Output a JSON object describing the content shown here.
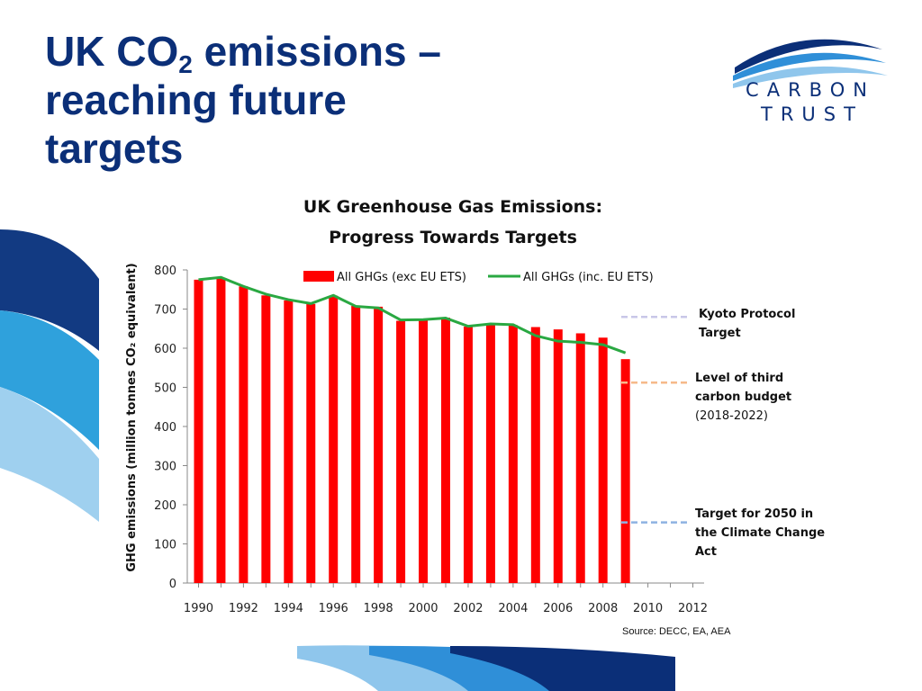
{
  "slide": {
    "title_line1_pre": "UK CO",
    "title_sub": "2",
    "title_line1_post": " emissions –",
    "title_line2": "reaching future",
    "title_line3": "targets"
  },
  "logo": {
    "line1": "CARBON",
    "line2": "TRUST",
    "colors": [
      "#0b2f78",
      "#2f8fd8",
      "#8fc6ec"
    ]
  },
  "chart_data": {
    "type": "bar",
    "title_line1": "UK Greenhouse Gas Emissions:",
    "title_line2": "Progress Towards Targets",
    "ylabel": "GHG emissions (million tonnes CO₂ equivalent)",
    "xlabel": "",
    "ylim": [
      0,
      800
    ],
    "yticks": [
      0,
      100,
      200,
      300,
      400,
      500,
      600,
      700,
      800
    ],
    "xlim": [
      1989.5,
      2012.5
    ],
    "xticks": [
      1990,
      1992,
      1994,
      1996,
      1998,
      2000,
      2002,
      2004,
      2006,
      2008,
      2010,
      2012
    ],
    "grid": false,
    "legend_position": "top",
    "x": [
      1990,
      1991,
      1992,
      1993,
      1994,
      1995,
      1996,
      1997,
      1998,
      1999,
      2000,
      2001,
      2002,
      2003,
      2004,
      2005,
      2006,
      2007,
      2008,
      2009
    ],
    "series": [
      {
        "name": "All GHGs (exc EU ETS)",
        "type": "bar",
        "color": "#ff0000",
        "values": [
          775,
          779,
          758,
          735,
          722,
          713,
          734,
          708,
          706,
          670,
          673,
          678,
          655,
          660,
          659,
          654,
          648,
          638,
          627,
          572
        ]
      },
      {
        "name": "All GHGs (inc. EU ETS)",
        "type": "line",
        "color": "#2aa842",
        "values": [
          775,
          781,
          758,
          738,
          724,
          714,
          735,
          707,
          703,
          672,
          673,
          677,
          656,
          662,
          660,
          632,
          618,
          615,
          609,
          588
        ]
      }
    ],
    "targets": [
      {
        "label_lines": [
          "Kyoto Protocol",
          "Target"
        ],
        "value": 680,
        "color": "#c9c7e8"
      },
      {
        "label_lines": [
          "Level of third",
          "carbon budget",
          "(2018-2022)"
        ],
        "value": 512,
        "color": "#f6b98a"
      },
      {
        "label_lines": [
          "Target for 2050 in",
          "the Climate Change",
          "Act"
        ],
        "value": 155,
        "color": "#8eb2e2"
      }
    ],
    "source": "Source: DECC, EA, AEA"
  }
}
